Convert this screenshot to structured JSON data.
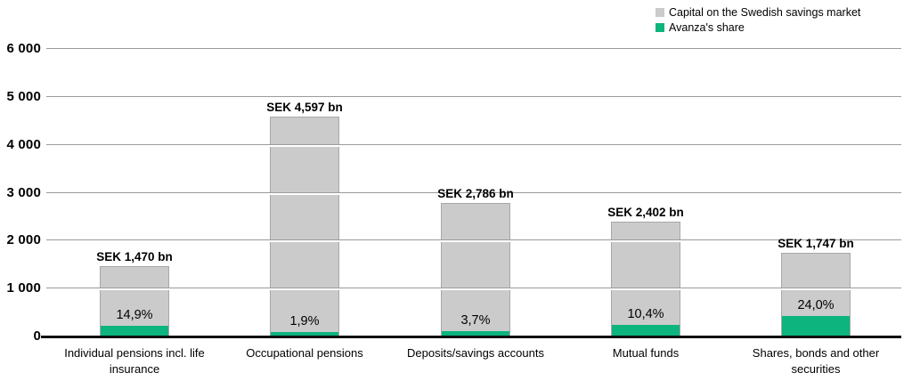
{
  "chart_data": {
    "type": "bar",
    "title": "",
    "legend_position": "top-right",
    "grid": true,
    "ylim": [
      0,
      6000
    ],
    "y_ticks": [
      "0",
      "1 000",
      "2 000",
      "3 000",
      "4 000",
      "5 000",
      "6 000"
    ],
    "categories": [
      "Individual pensions incl. life insurance",
      "Occupational pensions",
      "Deposits/savings accounts",
      "Mutual funds",
      "Shares, bonds and other securities"
    ],
    "series": [
      {
        "name": "Capital on the Swedish savings market",
        "color": "#cbcbcb",
        "values": [
          1470,
          4597,
          2786,
          2402,
          1747
        ],
        "value_labels": [
          "SEK 1,470 bn",
          "SEK 4,597 bn",
          "SEK 2,786 bn",
          "SEK 2,402 bn",
          "SEK 1,747 bn"
        ]
      },
      {
        "name": "Avanza's share",
        "color": "#0db47e",
        "percent_of_total": [
          14.9,
          1.9,
          3.7,
          10.4,
          24.0
        ],
        "percent_labels": [
          "14,9%",
          "1,9%",
          "3,7%",
          "10,4%",
          "24,0%"
        ]
      }
    ]
  },
  "colors": {
    "bar_gray": "#cbcbcb",
    "avanza_green": "#0db47e",
    "gridline": "#9b9b9b",
    "axis": "#101010",
    "text": "#000000"
  }
}
